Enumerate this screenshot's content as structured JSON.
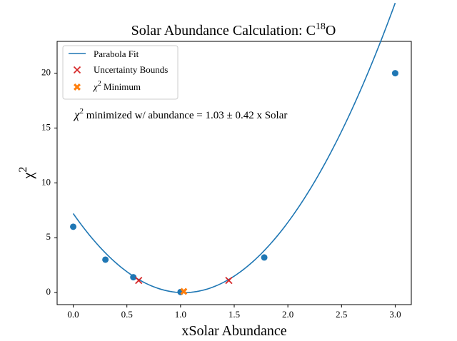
{
  "chart_data": {
    "type": "scatter",
    "title": "Solar Abundance Calculation: C",
    "title_sup": "18",
    "title_suffix": "O",
    "xlabel": "xSolar Abundance",
    "ylabel": "χ",
    "ylabel_sup": "2",
    "xlim": [
      -0.15,
      3.15
    ],
    "ylim": [
      -1.1,
      22.9
    ],
    "xticks": [
      0.0,
      0.5,
      1.0,
      1.5,
      2.0,
      2.5,
      3.0
    ],
    "xtick_labels": [
      "0.0",
      "0.5",
      "1.0",
      "1.5",
      "2.0",
      "2.5",
      "3.0"
    ],
    "yticks": [
      0,
      5,
      10,
      15,
      20
    ],
    "ytick_labels": [
      "0",
      "5",
      "10",
      "15",
      "20"
    ],
    "colors": {
      "fit": "#1f77b4",
      "points": "#1f77b4",
      "bounds": "#d62728",
      "minimum": "#ff7f0e",
      "legend_border": "#cccccc"
    },
    "data_points": {
      "x": [
        0.0,
        0.3,
        0.56,
        1.0,
        1.78,
        3.0
      ],
      "y": [
        6.0,
        3.0,
        1.4,
        0.05,
        3.2,
        20.0
      ]
    },
    "parabola_fit": {
      "a": 6.8,
      "b": -14.0,
      "c": 7.2,
      "x_range": [
        0.0,
        3.0
      ]
    },
    "uncertainty_bounds": {
      "x": [
        0.61,
        1.45
      ],
      "y": [
        1.1,
        1.1
      ]
    },
    "chi2_minimum": {
      "x": [
        1.03
      ],
      "y": [
        0.1
      ]
    },
    "legend": {
      "position": "top-left",
      "entries": [
        {
          "label": "Parabola Fit"
        },
        {
          "label": "Uncertainty Bounds"
        },
        {
          "label_prefix": "χ",
          "label_sup": "2",
          "label_suffix": " Minimum"
        }
      ]
    },
    "annotation": {
      "prefix": "χ",
      "sup": "2",
      "text": " minimized w/ abundance = 1.03 ± 0.42 x Solar"
    }
  }
}
